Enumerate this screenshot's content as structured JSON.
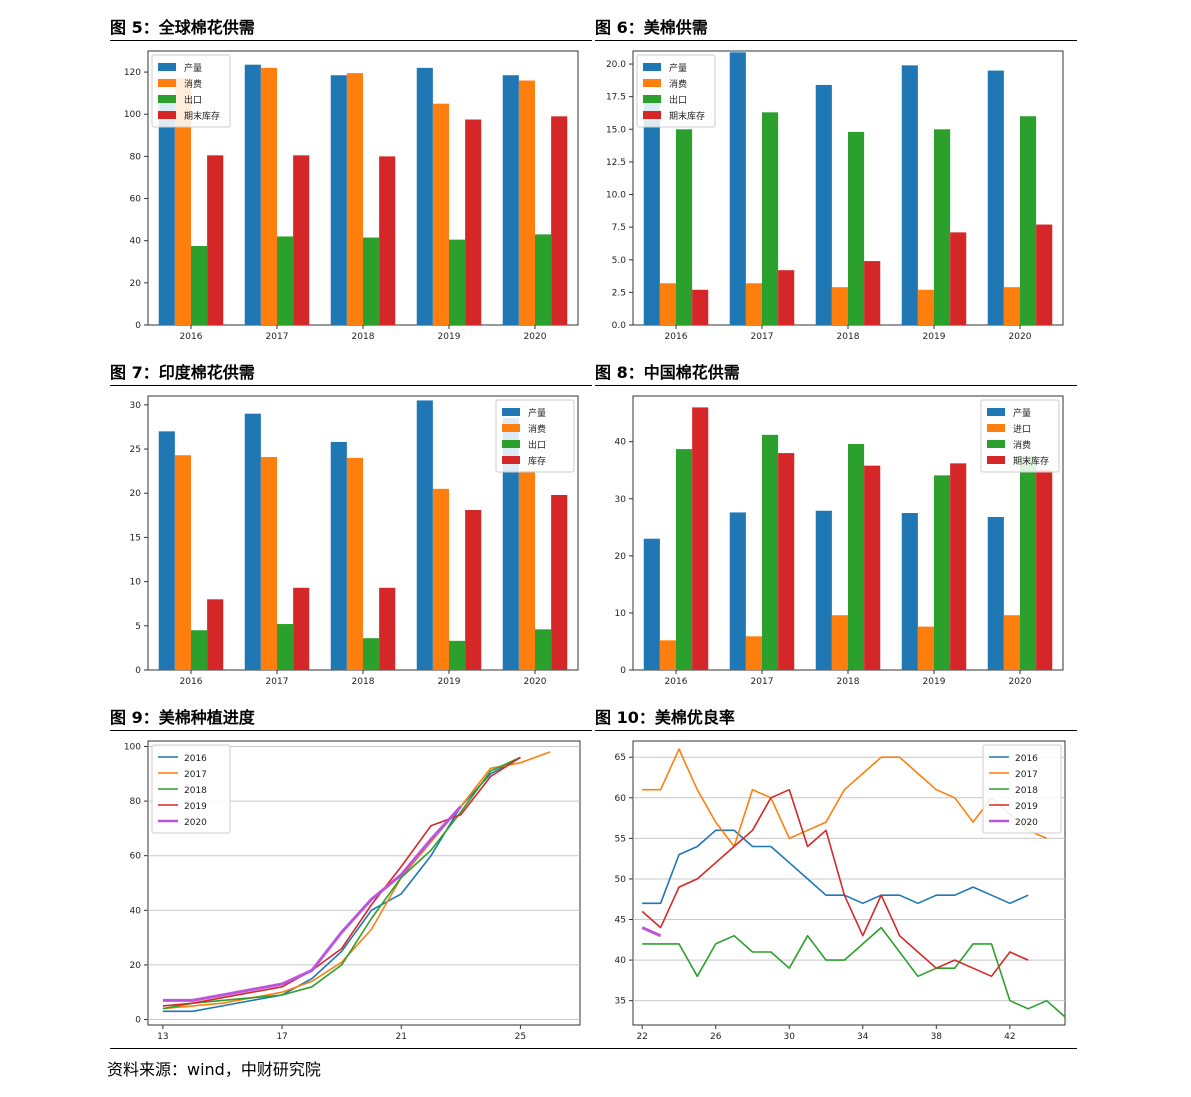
{
  "source_note": "资料来源：wind，中财研究院",
  "colors": {
    "c0": "#1f77b4",
    "c1": "#ff7f0e",
    "c2": "#2ca02c",
    "c3": "#d62728",
    "c4": "#bb55dd"
  },
  "panels": [
    {
      "title": "图 5：全球棉花供需"
    },
    {
      "title": "图 6：美棉供需"
    },
    {
      "title": "图 7：印度棉花供需"
    },
    {
      "title": "图 8：中国棉花供需"
    },
    {
      "title": "图 9：美棉种植进度"
    },
    {
      "title": "图 10：美棉优良率"
    }
  ],
  "chart_data": [
    {
      "type": "bar",
      "categories": [
        "2016",
        "2017",
        "2018",
        "2019",
        "2020"
      ],
      "ylim": [
        0,
        130
      ],
      "yticks": [
        0,
        20,
        40,
        60,
        80,
        100,
        120
      ],
      "legend_position": "top-left",
      "series": [
        {
          "name": "产量",
          "values": [
            106.5,
            123.5,
            118.5,
            122,
            118.5
          ]
        },
        {
          "name": "消费",
          "values": [
            117,
            122,
            119.5,
            105,
            116
          ]
        },
        {
          "name": "出口",
          "values": [
            37.5,
            42,
            41.5,
            40.5,
            43
          ]
        },
        {
          "name": "期末库存",
          "values": [
            80.5,
            80.5,
            80,
            97.5,
            99
          ]
        }
      ]
    },
    {
      "type": "bar",
      "categories": [
        "2016",
        "2017",
        "2018",
        "2019",
        "2020"
      ],
      "ylim": [
        0,
        21
      ],
      "yticks": [
        "0.0",
        "2.5",
        "5.0",
        "7.5",
        "10.0",
        "12.5",
        "15.0",
        "17.5",
        "20.0"
      ],
      "legend_position": "top-left",
      "series": [
        {
          "name": "产量",
          "values": [
            17.2,
            20.9,
            18.4,
            19.9,
            19.5
          ]
        },
        {
          "name": "消费",
          "values": [
            3.2,
            3.2,
            2.9,
            2.7,
            2.9
          ]
        },
        {
          "name": "出口",
          "values": [
            15,
            16.3,
            14.8,
            15,
            16
          ]
        },
        {
          "name": "期末库存",
          "values": [
            2.7,
            4.2,
            4.9,
            7.1,
            7.7
          ]
        }
      ]
    },
    {
      "type": "bar",
      "categories": [
        "2016",
        "2017",
        "2018",
        "2019",
        "2020"
      ],
      "ylim": [
        0,
        31
      ],
      "yticks": [
        0,
        5,
        10,
        15,
        20,
        25,
        30
      ],
      "legend_position": "top-right",
      "series": [
        {
          "name": "产量",
          "values": [
            27,
            29,
            25.8,
            30.5,
            28.5
          ]
        },
        {
          "name": "消费",
          "values": [
            24.3,
            24.1,
            24,
            20.5,
            22.5
          ]
        },
        {
          "name": "出口",
          "values": [
            4.5,
            5.2,
            3.6,
            3.3,
            4.6
          ]
        },
        {
          "name": "库存",
          "values": [
            8,
            9.3,
            9.3,
            18.1,
            19.8
          ]
        }
      ]
    },
    {
      "type": "bar",
      "categories": [
        "2016",
        "2017",
        "2018",
        "2019",
        "2020"
      ],
      "ylim": [
        0,
        48
      ],
      "yticks": [
        0,
        10,
        20,
        30,
        40
      ],
      "legend_position": "top-right",
      "series": [
        {
          "name": "产量",
          "values": [
            23,
            27.6,
            27.9,
            27.5,
            26.8
          ]
        },
        {
          "name": "进口",
          "values": [
            5.2,
            5.9,
            9.6,
            7.6,
            9.6
          ]
        },
        {
          "name": "消费",
          "values": [
            38.7,
            41.2,
            39.6,
            34.1,
            37.5
          ]
        },
        {
          "name": "期末库存",
          "values": [
            46,
            38,
            35.8,
            36.2,
            35
          ]
        }
      ]
    },
    {
      "type": "line",
      "xlim": [
        12.5,
        27
      ],
      "xticks": [
        13,
        17,
        21,
        25
      ],
      "ylim": [
        -2,
        102
      ],
      "yticks": [
        0,
        20,
        40,
        60,
        80,
        100
      ],
      "grid": "horizontal",
      "legend_position": "top-left",
      "series": [
        {
          "name": "2016",
          "x": [
            13,
            14,
            15,
            16,
            17,
            18,
            19,
            20,
            21,
            22,
            23,
            24,
            25
          ],
          "y": [
            3,
            3,
            5,
            7,
            9,
            15,
            25,
            40,
            46,
            60,
            78,
            90,
            96
          ]
        },
        {
          "name": "2017",
          "x": [
            13,
            14,
            15,
            16,
            17,
            18,
            19,
            20,
            21,
            22,
            23,
            24,
            25,
            26
          ],
          "y": [
            4,
            5,
            6,
            8,
            10,
            14,
            21,
            33,
            52,
            65,
            78,
            92,
            94,
            98
          ]
        },
        {
          "name": "2018",
          "x": [
            13,
            14,
            15,
            16,
            17,
            18,
            19,
            20,
            21,
            22,
            23,
            24,
            25
          ],
          "y": [
            4,
            6,
            7,
            8,
            9,
            12,
            20,
            37,
            52,
            62,
            76,
            91,
            96
          ]
        },
        {
          "name": "2019",
          "x": [
            13,
            14,
            15,
            16,
            17,
            18,
            19,
            20,
            21,
            22,
            23,
            24,
            25
          ],
          "y": [
            5,
            6,
            8,
            10,
            12,
            18,
            26,
            42,
            56,
            71,
            75,
            89,
            96
          ]
        },
        {
          "name": "2020",
          "x": [
            13,
            14,
            15,
            16,
            17,
            18,
            19,
            20,
            21,
            22,
            23
          ],
          "y": [
            7,
            7,
            9,
            11,
            13,
            18,
            32,
            44,
            53,
            66,
            78
          ]
        }
      ]
    },
    {
      "type": "line",
      "xlim": [
        21.5,
        45
      ],
      "xticks": [
        22,
        26,
        30,
        34,
        38,
        42
      ],
      "ylim": [
        32,
        67
      ],
      "yticks": [
        35,
        40,
        45,
        50,
        55,
        60,
        65
      ],
      "grid": "horizontal",
      "legend_position": "top-right",
      "series": [
        {
          "name": "2016",
          "x": [
            22,
            23,
            24,
            25,
            26,
            27,
            28,
            29,
            30,
            31,
            32,
            33,
            34,
            35,
            36,
            37,
            38,
            39,
            40,
            41,
            42,
            43
          ],
          "y": [
            47,
            47,
            53,
            54,
            56,
            56,
            54,
            54,
            52,
            50,
            48,
            48,
            47,
            48,
            48,
            47,
            48,
            48,
            49,
            48,
            47,
            48
          ]
        },
        {
          "name": "2017",
          "x": [
            22,
            23,
            24,
            25,
            26,
            27,
            28,
            29,
            30,
            31,
            32,
            33,
            34,
            35,
            36,
            37,
            38,
            39,
            40,
            41,
            42,
            43,
            44
          ],
          "y": [
            61,
            61,
            66,
            61,
            57,
            54,
            61,
            60,
            55,
            56,
            57,
            61,
            63,
            65,
            65,
            63,
            61,
            60,
            57,
            60,
            58,
            56,
            55
          ]
        },
        {
          "name": "2018",
          "x": [
            22,
            23,
            24,
            25,
            26,
            27,
            28,
            29,
            30,
            31,
            32,
            33,
            34,
            35,
            36,
            37,
            38,
            39,
            40,
            41,
            42,
            43,
            44,
            45
          ],
          "y": [
            42,
            42,
            42,
            38,
            42,
            43,
            41,
            41,
            39,
            43,
            40,
            40,
            42,
            44,
            41,
            38,
            39,
            39,
            42,
            42,
            35,
            34,
            35,
            33
          ]
        },
        {
          "name": "2019",
          "x": [
            22,
            23,
            24,
            25,
            26,
            27,
            28,
            29,
            30,
            31,
            32,
            33,
            34,
            35,
            36,
            37,
            38,
            39,
            40,
            41,
            42,
            43
          ],
          "y": [
            46,
            44,
            49,
            50,
            52,
            54,
            56,
            60,
            61,
            54,
            56,
            48,
            43,
            48,
            43,
            41,
            39,
            40,
            39,
            38,
            41,
            40
          ]
        },
        {
          "name": "2020",
          "x": [
            22,
            23
          ],
          "y": [
            44,
            43
          ]
        }
      ]
    }
  ]
}
